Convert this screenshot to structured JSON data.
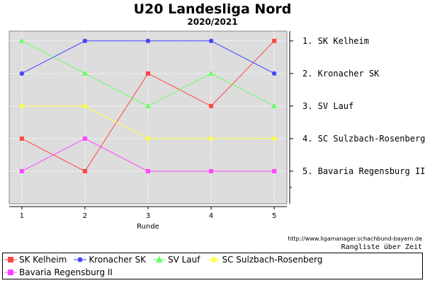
{
  "chart_data": {
    "type": "line",
    "title": "U20 Landesliga Nord",
    "subtitle": "2020/2021",
    "xlabel": "Runde",
    "ylabel": "",
    "x": [
      1,
      2,
      3,
      4,
      5
    ],
    "ylim": [
      6,
      0.7
    ],
    "y_reversed": true,
    "grid": true,
    "rank_labels": [
      "1. SK Kelheim",
      "2. Kronacher SK",
      "3. SV Lauf",
      "4. SC Sulzbach-Rosenberg",
      "5. Bavaria Regensburg II"
    ],
    "series": [
      {
        "name": "SK Kelheim",
        "color": "#ff4444",
        "marker": "square",
        "values": [
          4,
          5,
          2,
          3,
          1
        ]
      },
      {
        "name": "Kronacher SK",
        "color": "#4444ff",
        "marker": "circle",
        "values": [
          2,
          1,
          1,
          1,
          2
        ]
      },
      {
        "name": "SV Lauf",
        "color": "#66ff66",
        "marker": "triangle",
        "values": [
          1,
          2,
          3,
          2,
          3
        ]
      },
      {
        "name": "SC Sulzbach-Rosenberg",
        "color": "#ffff44",
        "marker": "diamond",
        "values": [
          3,
          3,
          4,
          4,
          4
        ]
      },
      {
        "name": "Bavaria Regensburg II",
        "color": "#ff44ff",
        "marker": "square",
        "values": [
          5,
          4,
          5,
          5,
          5
        ]
      }
    ],
    "legend_position": "bottom"
  },
  "footer": {
    "url": "http://www.ligamanager.schachbund-bayern.de",
    "caption": "Rangliste über Zeit"
  }
}
